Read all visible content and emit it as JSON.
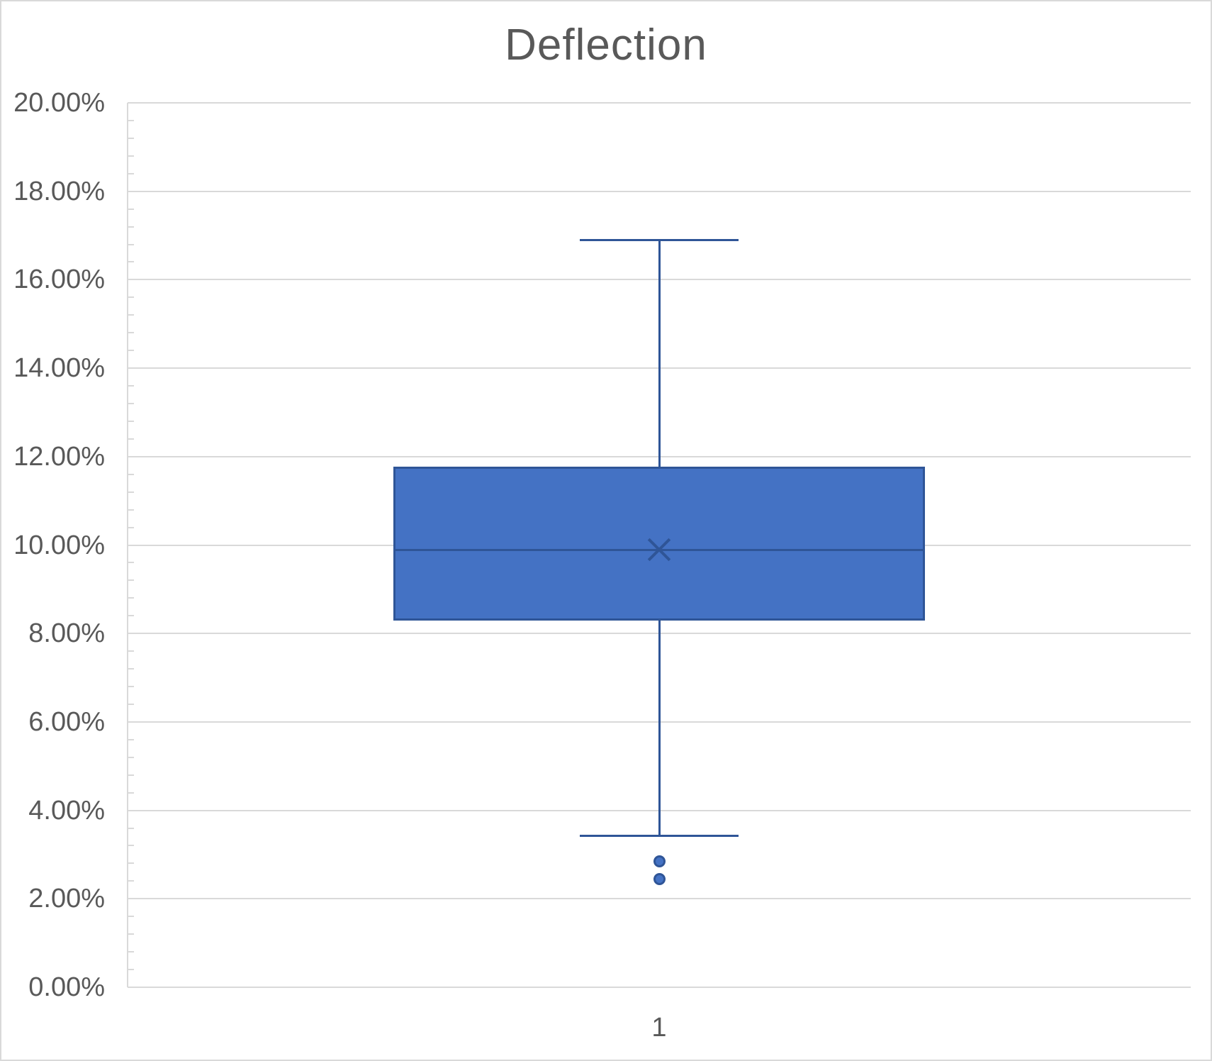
{
  "chart_data": {
    "type": "boxplot",
    "title": "Deflection",
    "categories": [
      "1"
    ],
    "series": [
      {
        "name": "Deflection",
        "whisker_min": 3.43,
        "q1": 8.29,
        "median": 9.88,
        "q3": 11.77,
        "whisker_max": 16.9,
        "mean": 9.9,
        "outliers": [
          2.85,
          2.44
        ]
      }
    ],
    "ylim": [
      0,
      20
    ],
    "y_unit": "%",
    "y_major_step": 2,
    "y_minor_step": 0.4,
    "y_ticks": [
      "0.00%",
      "2.00%",
      "4.00%",
      "6.00%",
      "8.00%",
      "10.00%",
      "12.00%",
      "14.00%",
      "16.00%",
      "18.00%",
      "20.00%"
    ],
    "grid": true,
    "legend": "none",
    "colors": {
      "box_fill": "#4472c4",
      "box_border": "#2f5597",
      "whisker": "#2f5597",
      "mean_marker": "#2f5597",
      "gridline": "#d9d9d9",
      "axis_line": "#d9d9d9",
      "text": "#595959",
      "background": "#ffffff",
      "chart_border": "#d9d9d9"
    }
  }
}
